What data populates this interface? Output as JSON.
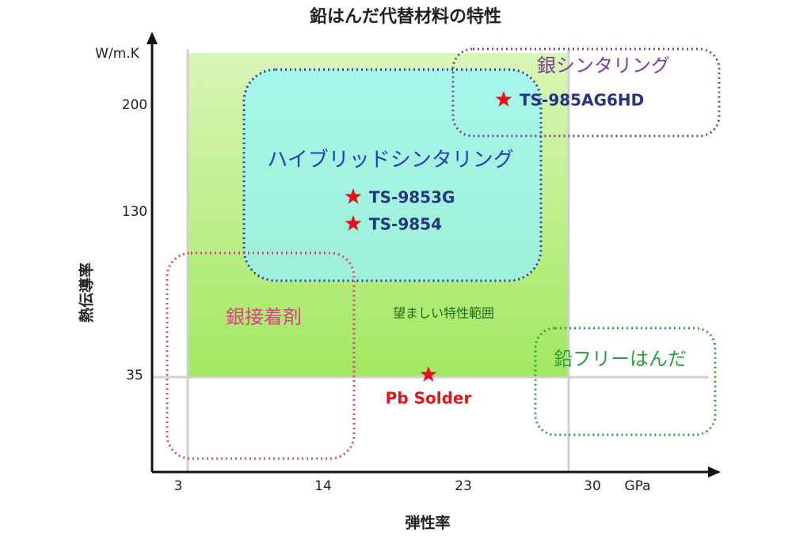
{
  "title": "鉛はんだ代替材料の特性",
  "y_axis": {
    "label": "熱伝導率",
    "unit": "W/m.K",
    "ticks": [
      "200",
      "130",
      "35"
    ]
  },
  "x_axis": {
    "label": "弾性率",
    "unit": "GPa",
    "ticks": [
      "3",
      "14",
      "23",
      "30"
    ]
  },
  "regions": [
    {
      "label": "望ましい特性範囲"
    },
    {
      "label": "ハイブリッドシンタリング"
    },
    {
      "label": "銀シンタリング"
    },
    {
      "label": "銀接着剤"
    },
    {
      "label": "鉛フリーはんだ"
    }
  ],
  "points": [
    {
      "label": "TS-985AG6HD"
    },
    {
      "label": "TS-9853G"
    },
    {
      "label": "TS-9854"
    },
    {
      "label": "Pb Solder"
    }
  ]
}
